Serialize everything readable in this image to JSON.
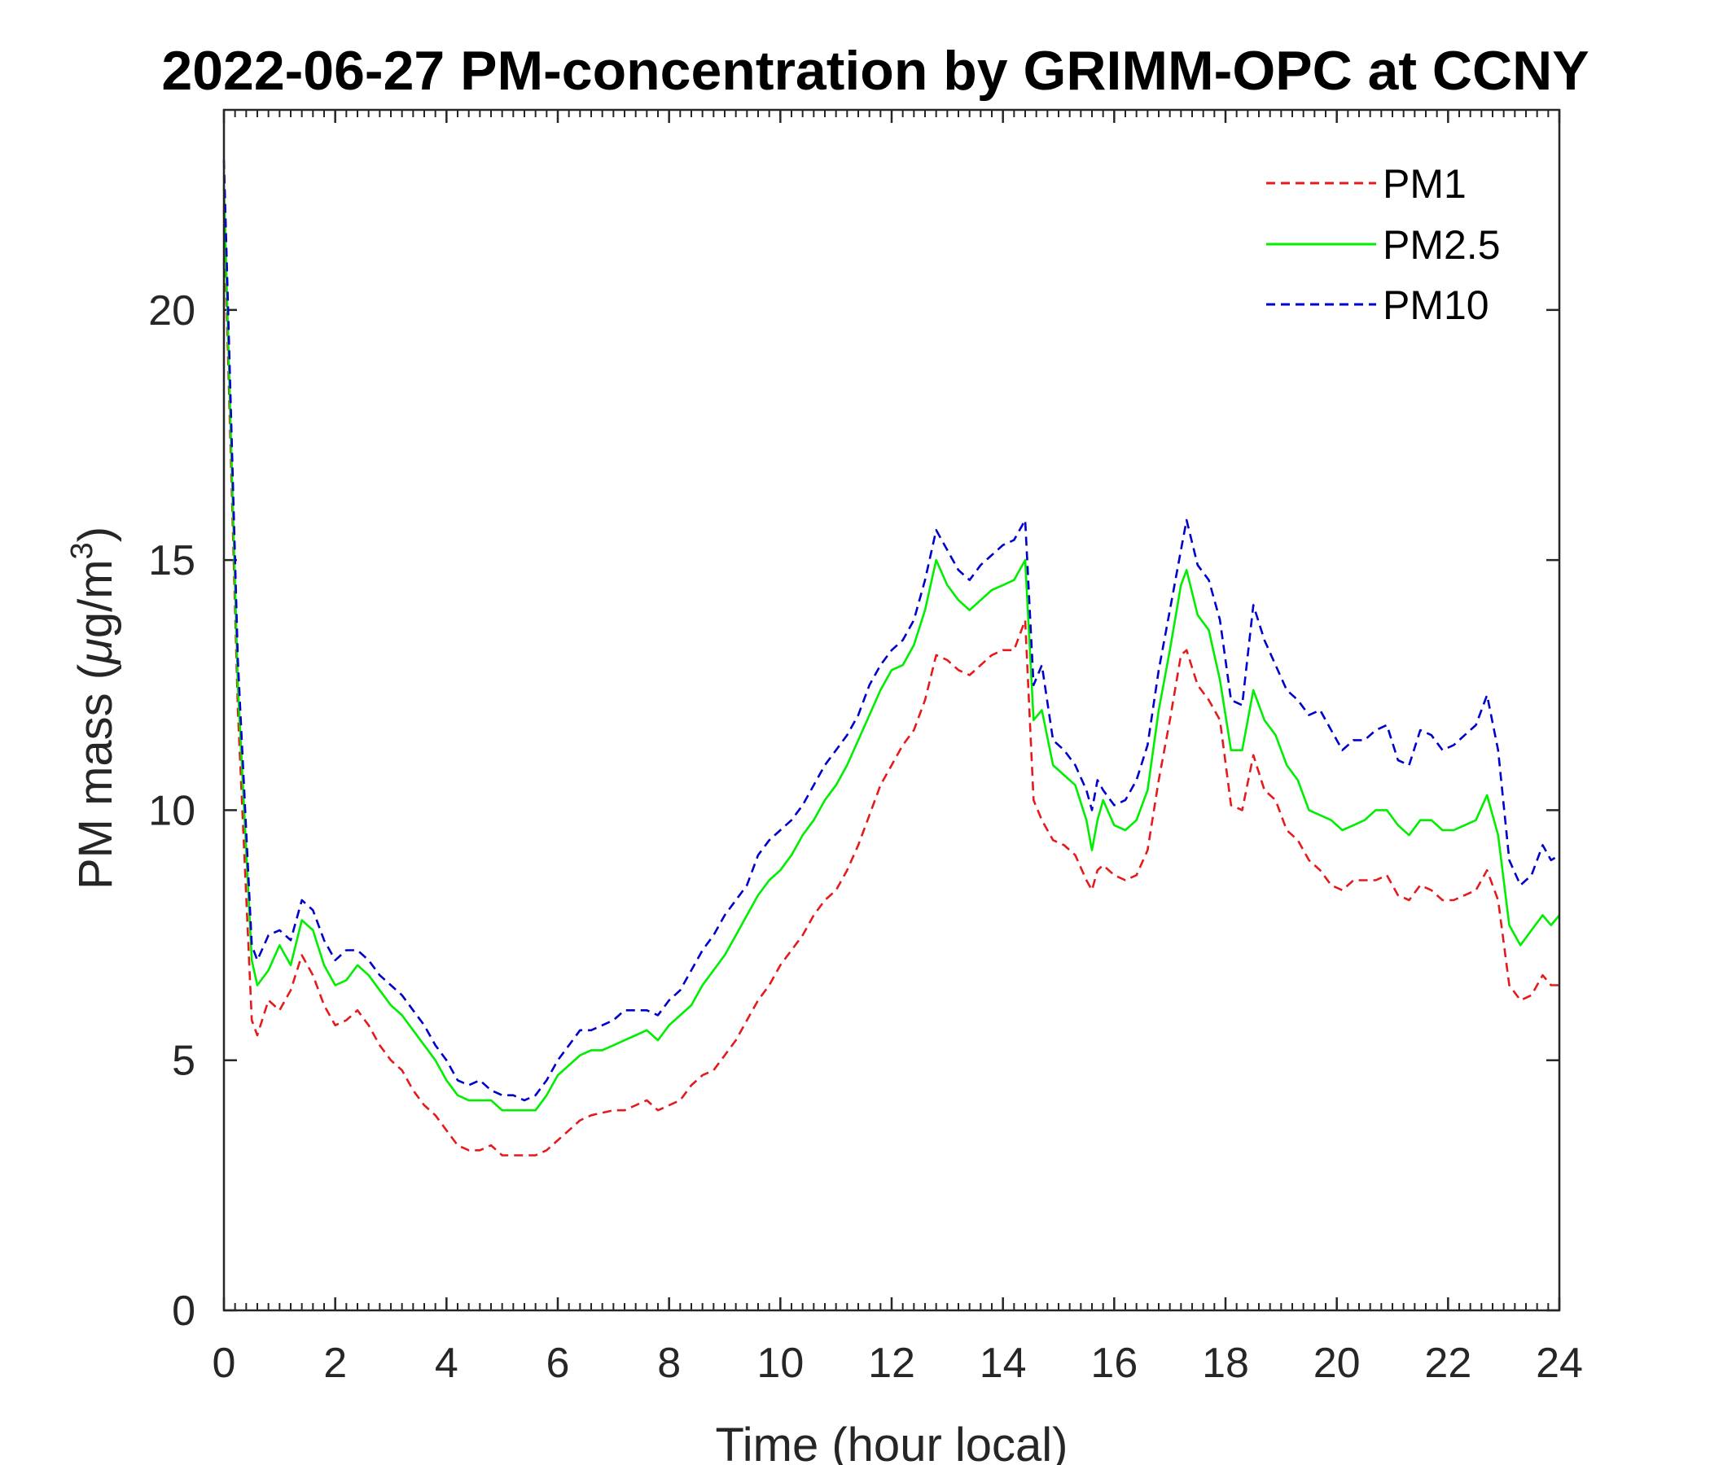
{
  "chart_data": {
    "type": "line",
    "title": "2022-06-27 PM-concentration by GRIMM-OPC at CCNY",
    "xlabel": "Time (hour local)",
    "ylabel": {
      "text": "PM mass (",
      "mu": "μ",
      "unit": "g/m",
      "sup": "3",
      "close": ")"
    },
    "xlim": [
      0,
      24
    ],
    "ylim": [
      0,
      24
    ],
    "xticks": [
      0,
      2,
      4,
      6,
      8,
      10,
      12,
      14,
      16,
      18,
      20,
      22,
      24
    ],
    "yticks": [
      0,
      5,
      10,
      15,
      20
    ],
    "xtick_labels": [
      "0",
      "2",
      "4",
      "6",
      "8",
      "10",
      "12",
      "14",
      "16",
      "18",
      "20",
      "22",
      "24"
    ],
    "ytick_labels": [
      "0",
      "5",
      "10",
      "15",
      "20"
    ],
    "legend_position": "top-right",
    "series": [
      {
        "name": "PM1",
        "color": "#e41a1c",
        "style": "dashed",
        "x": [
          0,
          0.25,
          0.5,
          0.6,
          0.8,
          1.0,
          1.2,
          1.4,
          1.6,
          1.8,
          2.0,
          2.2,
          2.4,
          2.6,
          2.8,
          3.0,
          3.2,
          3.4,
          3.6,
          3.8,
          4.0,
          4.2,
          4.4,
          4.6,
          4.8,
          5.0,
          5.2,
          5.4,
          5.6,
          5.8,
          6.0,
          6.2,
          6.4,
          6.6,
          6.8,
          7.0,
          7.2,
          7.4,
          7.6,
          7.8,
          8.0,
          8.2,
          8.4,
          8.6,
          8.8,
          9.0,
          9.2,
          9.4,
          9.6,
          9.8,
          10.0,
          10.2,
          10.4,
          10.6,
          10.8,
          11.0,
          11.2,
          11.4,
          11.6,
          11.8,
          12.0,
          12.2,
          12.4,
          12.6,
          12.8,
          13.0,
          13.2,
          13.4,
          13.6,
          13.8,
          14.0,
          14.2,
          14.4,
          14.55,
          14.7,
          14.9,
          15.1,
          15.3,
          15.5,
          15.6,
          15.7,
          15.8,
          16.0,
          16.2,
          16.4,
          16.6,
          16.8,
          17.0,
          17.2,
          17.3,
          17.5,
          17.7,
          17.9,
          18.1,
          18.3,
          18.5,
          18.7,
          18.9,
          19.1,
          19.3,
          19.5,
          19.7,
          19.9,
          20.1,
          20.3,
          20.5,
          20.7,
          20.9,
          21.1,
          21.3,
          21.5,
          21.7,
          21.9,
          22.1,
          22.3,
          22.5,
          22.7,
          22.9,
          23.1,
          23.3,
          23.5,
          23.7,
          23.85,
          24.0
        ],
        "values": [
          22.0,
          12.0,
          5.8,
          5.5,
          6.2,
          6.0,
          6.4,
          7.1,
          6.7,
          6.1,
          5.7,
          5.8,
          6.0,
          5.7,
          5.3,
          5.0,
          4.8,
          4.4,
          4.1,
          3.9,
          3.6,
          3.3,
          3.2,
          3.2,
          3.3,
          3.1,
          3.1,
          3.1,
          3.1,
          3.2,
          3.4,
          3.6,
          3.8,
          3.9,
          3.95,
          4.0,
          4.0,
          4.1,
          4.2,
          4.0,
          4.1,
          4.2,
          4.5,
          4.7,
          4.8,
          5.1,
          5.4,
          5.8,
          6.2,
          6.5,
          6.9,
          7.2,
          7.5,
          7.9,
          8.2,
          8.4,
          8.8,
          9.3,
          9.9,
          10.5,
          10.9,
          11.3,
          11.6,
          12.2,
          13.1,
          13.0,
          12.8,
          12.7,
          12.9,
          13.1,
          13.2,
          13.2,
          13.8,
          10.2,
          9.8,
          9.4,
          9.3,
          9.1,
          8.6,
          8.4,
          8.8,
          8.9,
          8.7,
          8.6,
          8.7,
          9.2,
          10.6,
          11.8,
          13.1,
          13.2,
          12.5,
          12.2,
          11.8,
          10.1,
          10.0,
          11.1,
          10.4,
          10.2,
          9.6,
          9.4,
          9.0,
          8.8,
          8.5,
          8.4,
          8.6,
          8.6,
          8.6,
          8.7,
          8.3,
          8.2,
          8.5,
          8.4,
          8.2,
          8.2,
          8.3,
          8.4,
          8.8,
          8.2,
          6.5,
          6.2,
          6.3,
          6.7,
          6.5,
          6.5
        ]
      },
      {
        "name": "PM2.5",
        "color": "#00ee00",
        "style": "solid",
        "x": [
          0,
          0.25,
          0.5,
          0.6,
          0.8,
          1.0,
          1.2,
          1.4,
          1.6,
          1.8,
          2.0,
          2.2,
          2.4,
          2.6,
          2.8,
          3.0,
          3.2,
          3.4,
          3.6,
          3.8,
          4.0,
          4.2,
          4.4,
          4.6,
          4.8,
          5.0,
          5.2,
          5.4,
          5.6,
          5.8,
          6.0,
          6.2,
          6.4,
          6.6,
          6.8,
          7.0,
          7.2,
          7.4,
          7.6,
          7.8,
          8.0,
          8.2,
          8.4,
          8.6,
          8.8,
          9.0,
          9.2,
          9.4,
          9.6,
          9.8,
          10.0,
          10.2,
          10.4,
          10.6,
          10.8,
          11.0,
          11.2,
          11.4,
          11.6,
          11.8,
          12.0,
          12.2,
          12.4,
          12.6,
          12.8,
          13.0,
          13.2,
          13.4,
          13.6,
          13.8,
          14.0,
          14.2,
          14.4,
          14.55,
          14.7,
          14.9,
          15.1,
          15.3,
          15.5,
          15.6,
          15.7,
          15.8,
          16.0,
          16.2,
          16.4,
          16.6,
          16.8,
          17.0,
          17.2,
          17.3,
          17.5,
          17.7,
          17.9,
          18.1,
          18.3,
          18.5,
          18.7,
          18.9,
          19.1,
          19.3,
          19.5,
          19.7,
          19.9,
          20.1,
          20.3,
          20.5,
          20.7,
          20.9,
          21.1,
          21.3,
          21.5,
          21.7,
          21.9,
          22.1,
          22.3,
          22.5,
          22.7,
          22.9,
          23.1,
          23.3,
          23.5,
          23.7,
          23.85,
          24.0
        ],
        "values": [
          22.5,
          12.5,
          7.0,
          6.5,
          6.8,
          7.3,
          6.9,
          7.8,
          7.6,
          6.9,
          6.5,
          6.6,
          6.9,
          6.7,
          6.4,
          6.1,
          5.9,
          5.6,
          5.3,
          5.0,
          4.6,
          4.3,
          4.2,
          4.2,
          4.2,
          4.0,
          4.0,
          4.0,
          4.0,
          4.3,
          4.7,
          4.9,
          5.1,
          5.2,
          5.2,
          5.3,
          5.4,
          5.5,
          5.6,
          5.4,
          5.7,
          5.9,
          6.1,
          6.5,
          6.8,
          7.1,
          7.5,
          7.9,
          8.3,
          8.6,
          8.8,
          9.1,
          9.5,
          9.8,
          10.2,
          10.5,
          10.9,
          11.4,
          11.9,
          12.4,
          12.8,
          12.9,
          13.3,
          14.0,
          15.0,
          14.5,
          14.2,
          14.0,
          14.2,
          14.4,
          14.5,
          14.6,
          15.0,
          11.8,
          12.0,
          10.9,
          10.7,
          10.5,
          9.8,
          9.2,
          9.8,
          10.2,
          9.7,
          9.6,
          9.8,
          10.4,
          12.0,
          13.2,
          14.5,
          14.8,
          13.9,
          13.6,
          12.6,
          11.2,
          11.2,
          12.4,
          11.8,
          11.5,
          10.9,
          10.6,
          10.0,
          9.9,
          9.8,
          9.6,
          9.7,
          9.8,
          10.0,
          10.0,
          9.7,
          9.5,
          9.8,
          9.8,
          9.6,
          9.6,
          9.7,
          9.8,
          10.3,
          9.5,
          7.7,
          7.3,
          7.6,
          7.9,
          7.7,
          7.9
        ]
      },
      {
        "name": "PM10",
        "color": "#0000cc",
        "style": "dashed",
        "x": [
          0,
          0.25,
          0.5,
          0.6,
          0.8,
          1.0,
          1.2,
          1.4,
          1.6,
          1.8,
          2.0,
          2.2,
          2.4,
          2.6,
          2.8,
          3.0,
          3.2,
          3.4,
          3.6,
          3.8,
          4.0,
          4.2,
          4.4,
          4.6,
          4.8,
          5.0,
          5.2,
          5.4,
          5.6,
          5.8,
          6.0,
          6.2,
          6.4,
          6.6,
          6.8,
          7.0,
          7.2,
          7.4,
          7.6,
          7.8,
          8.0,
          8.2,
          8.4,
          8.6,
          8.8,
          9.0,
          9.2,
          9.4,
          9.6,
          9.8,
          10.0,
          10.2,
          10.4,
          10.6,
          10.8,
          11.0,
          11.2,
          11.4,
          11.6,
          11.8,
          12.0,
          12.2,
          12.4,
          12.6,
          12.8,
          13.0,
          13.2,
          13.4,
          13.6,
          13.8,
          14.0,
          14.2,
          14.4,
          14.55,
          14.7,
          14.9,
          15.1,
          15.3,
          15.5,
          15.6,
          15.7,
          15.8,
          16.0,
          16.2,
          16.4,
          16.6,
          16.8,
          17.0,
          17.2,
          17.3,
          17.5,
          17.7,
          17.9,
          18.1,
          18.3,
          18.5,
          18.7,
          18.9,
          19.1,
          19.3,
          19.5,
          19.7,
          19.9,
          20.1,
          20.3,
          20.5,
          20.7,
          20.9,
          21.1,
          21.3,
          21.5,
          21.7,
          21.9,
          22.1,
          22.3,
          22.5,
          22.7,
          22.9,
          23.1,
          23.3,
          23.5,
          23.7,
          23.85,
          24.0
        ],
        "values": [
          23.0,
          13.0,
          7.3,
          7.0,
          7.5,
          7.6,
          7.4,
          8.2,
          8.0,
          7.4,
          7.0,
          7.2,
          7.2,
          7.0,
          6.7,
          6.5,
          6.3,
          6.0,
          5.7,
          5.3,
          5.0,
          4.6,
          4.5,
          4.6,
          4.4,
          4.3,
          4.3,
          4.2,
          4.3,
          4.6,
          5.0,
          5.3,
          5.6,
          5.6,
          5.7,
          5.8,
          6.0,
          6.0,
          6.0,
          5.9,
          6.2,
          6.4,
          6.8,
          7.2,
          7.5,
          7.9,
          8.2,
          8.5,
          9.1,
          9.4,
          9.6,
          9.8,
          10.1,
          10.5,
          10.9,
          11.2,
          11.5,
          11.9,
          12.5,
          12.9,
          13.2,
          13.4,
          13.8,
          14.6,
          15.6,
          15.2,
          14.8,
          14.6,
          14.9,
          15.1,
          15.3,
          15.4,
          15.8,
          12.5,
          12.9,
          11.4,
          11.2,
          10.9,
          10.4,
          10.0,
          10.6,
          10.4,
          10.1,
          10.2,
          10.6,
          11.3,
          12.8,
          14.0,
          15.2,
          15.8,
          14.9,
          14.6,
          13.8,
          12.2,
          12.1,
          14.1,
          13.4,
          12.9,
          12.4,
          12.2,
          11.9,
          12.0,
          11.6,
          11.2,
          11.4,
          11.4,
          11.6,
          11.7,
          11.0,
          10.9,
          11.6,
          11.5,
          11.2,
          11.3,
          11.5,
          11.7,
          12.3,
          11.2,
          9.0,
          8.5,
          8.7,
          9.3,
          9.0,
          9.1
        ]
      }
    ]
  }
}
